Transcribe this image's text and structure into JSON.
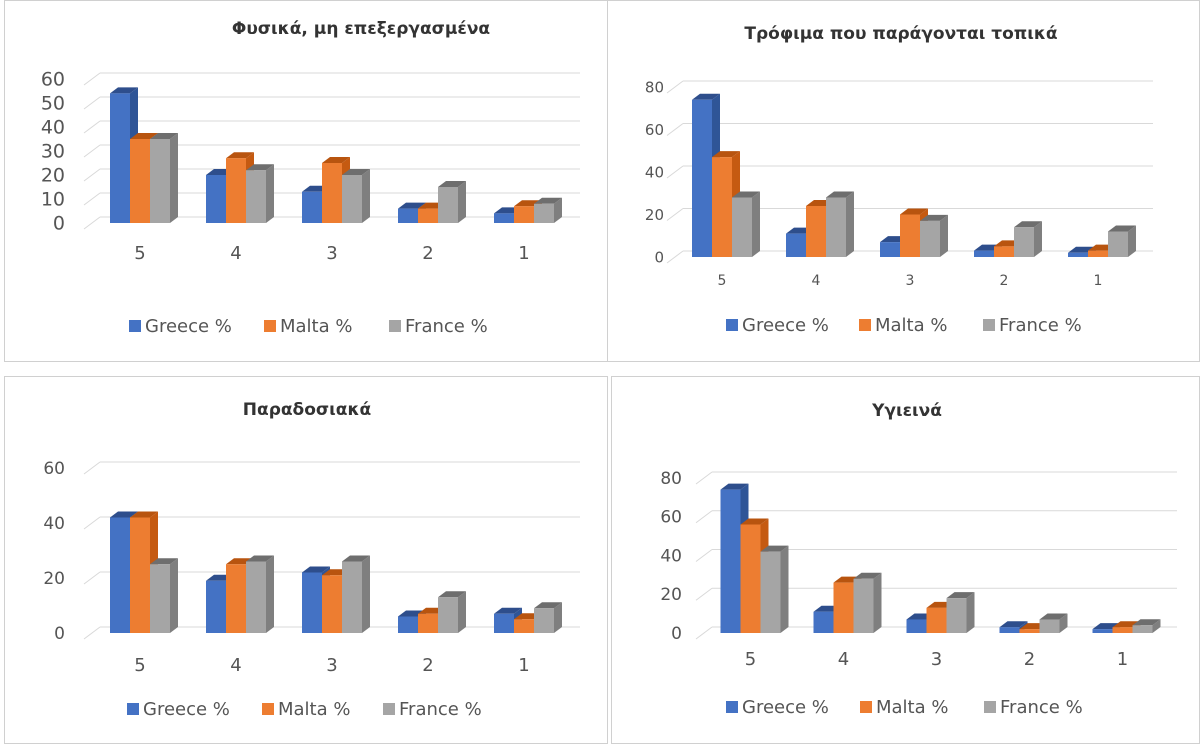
{
  "colors": {
    "Greece %": {
      "front": "#4472C4",
      "side": "#2F5597",
      "top": "#2E4E8C"
    },
    "Malta %": {
      "front": "#ED7D31",
      "side": "#C55A11",
      "top": "#B8540F"
    },
    "France %": {
      "front": "#A5A5A5",
      "side": "#7F7F7F",
      "top": "#6E6E6E"
    }
  },
  "chart_data": [
    {
      "type": "bar",
      "title": "Φυσικά, μη επεξεργασμένα",
      "categories": [
        "5",
        "4",
        "3",
        "2",
        "1"
      ],
      "series": [
        {
          "name": "Greece %",
          "values": [
            54,
            20,
            13,
            6,
            4
          ]
        },
        {
          "name": "Malta %",
          "values": [
            35,
            27,
            25,
            6,
            7
          ]
        },
        {
          "name": "France %",
          "values": [
            35,
            22,
            20,
            15,
            8
          ]
        }
      ],
      "ylim": [
        0,
        60
      ],
      "yticks": [
        0,
        10,
        20,
        30,
        40,
        50,
        60
      ],
      "grid": true,
      "legend": "bottom"
    },
    {
      "type": "bar",
      "title": "Τρόφιμα που παράγονται τοπικά",
      "categories": [
        "5",
        "4",
        "3",
        "2",
        "1"
      ],
      "series": [
        {
          "name": "Greece %",
          "values": [
            74,
            11,
            7,
            3,
            2
          ]
        },
        {
          "name": "Malta %",
          "values": [
            47,
            24,
            20,
            5,
            3
          ]
        },
        {
          "name": "France %",
          "values": [
            28,
            28,
            17,
            14,
            12
          ]
        }
      ],
      "ylim": [
        0,
        80
      ],
      "yticks": [
        0,
        20,
        40,
        60,
        80
      ],
      "grid": true,
      "legend": "bottom"
    },
    {
      "type": "bar",
      "title": "Παραδοσιακά",
      "categories": [
        "5",
        "4",
        "3",
        "2",
        "1"
      ],
      "series": [
        {
          "name": "Greece %",
          "values": [
            42,
            19,
            22,
            6,
            7
          ]
        },
        {
          "name": "Malta %",
          "values": [
            42,
            25,
            21,
            7,
            5
          ]
        },
        {
          "name": "France %",
          "values": [
            25,
            26,
            26,
            13,
            9
          ]
        }
      ],
      "ylim": [
        0,
        60
      ],
      "yticks": [
        0,
        20,
        40,
        60
      ],
      "grid": true,
      "legend": "bottom"
    },
    {
      "type": "bar",
      "title": "Υγιεινά",
      "categories": [
        "5",
        "4",
        "3",
        "2",
        "1"
      ],
      "series": [
        {
          "name": "Greece %",
          "values": [
            74,
            11,
            7,
            3,
            2
          ]
        },
        {
          "name": "Malta %",
          "values": [
            56,
            26,
            13,
            2,
            3
          ]
        },
        {
          "name": "France %",
          "values": [
            42,
            28,
            18,
            7,
            4
          ]
        }
      ],
      "ylim": [
        0,
        80
      ],
      "yticks": [
        0,
        20,
        40,
        60,
        80
      ],
      "grid": true,
      "legend": "bottom"
    }
  ]
}
